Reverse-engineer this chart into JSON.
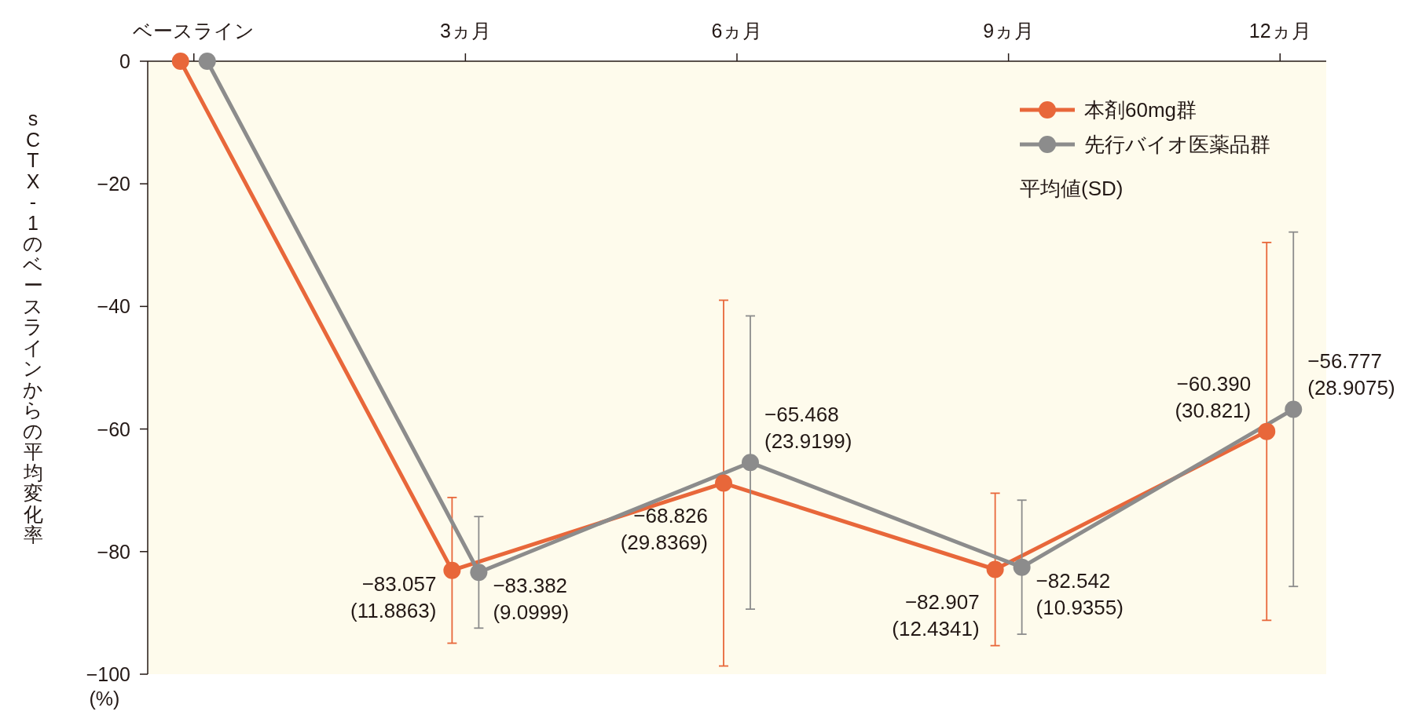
{
  "chart_data": {
    "type": "line",
    "ylabel": "sCTX-1のベースラインからの平均変化率",
    "categories": [
      "ベースライン",
      "3ヵ月",
      "6ヵ月",
      "9ヵ月",
      "12ヵ月"
    ],
    "ylim": [
      -100,
      0
    ],
    "yticks": [
      {
        "value": 0,
        "label": "0"
      },
      {
        "value": -20,
        "label": "−20"
      },
      {
        "value": -40,
        "label": "−40"
      },
      {
        "value": -60,
        "label": "−60"
      },
      {
        "value": -80,
        "label": "−80"
      },
      {
        "value": -100,
        "label": "−100"
      }
    ],
    "series": [
      {
        "name": "本剤60mg群",
        "color": "#e8673a",
        "values": [
          0,
          -83.057,
          -68.826,
          -82.907,
          -60.39
        ],
        "errors": [
          null,
          11.8863,
          29.8369,
          12.4341,
          30.821
        ],
        "value_labels": [
          null,
          "−83.057\n(11.8863)",
          "−68.826\n(29.8369)",
          "−82.907\n(12.4341)",
          "−60.390\n(30.821)"
        ]
      },
      {
        "name": "先行バイオ医薬品群",
        "color": "#8c8c8c",
        "values": [
          0,
          -83.382,
          -65.468,
          -82.542,
          -56.777
        ],
        "errors": [
          null,
          9.0999,
          23.9199,
          10.9355,
          28.9075
        ],
        "value_labels": [
          null,
          "−83.382\n(9.0999)",
          "−65.468\n(23.9199)",
          "−82.542\n(10.9355)",
          "−56.777\n(28.9075)"
        ]
      }
    ],
    "annotations": [
      "平均値(SD)",
      "(%)"
    ],
    "legend": "top right",
    "grid": false,
    "marker": "circle",
    "line_style": "solid"
  }
}
